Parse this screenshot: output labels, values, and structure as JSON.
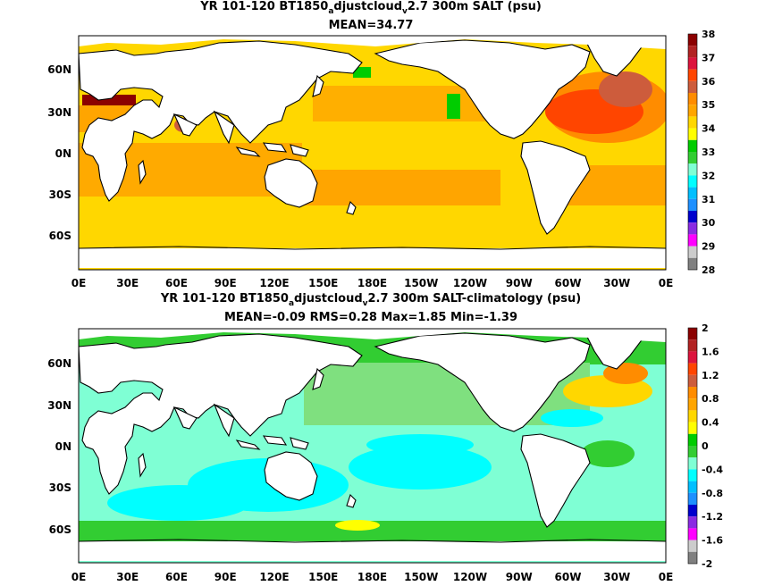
{
  "panels": [
    {
      "title_pre": "YR 101-120 BT1850",
      "title_sub1": "a",
      "title_mid": "djustcloud",
      "title_sub2": "v",
      "title_post": "2.7 300m SALT (psu)",
      "stats": "MEAN=34.77",
      "colorbar_labels": [
        "38",
        "37",
        "36",
        "35",
        "34",
        "33",
        "32",
        "31",
        "30",
        "29",
        "28"
      ],
      "colorbar_colors": [
        "#8b0000",
        "#b22222",
        "#dc143c",
        "#ff4500",
        "#cd5c3c",
        "#ff8c00",
        "#ffa500",
        "#ffd700",
        "#ffff00",
        "#00cc00",
        "#32cd32",
        "#7fffd4",
        "#00ffff",
        "#00bfff",
        "#1e90ff",
        "#0000cd",
        "#8a2be2",
        "#ff00ff",
        "#cccccc",
        "#808080"
      ]
    },
    {
      "title_pre": "YR 101-120 BT1850",
      "title_sub1": "a",
      "title_mid": "djustcloud",
      "title_sub2": "v",
      "title_post": "2.7 300m SALT-climatology (psu)",
      "stats": "MEAN=-0.09   RMS=0.28   Max=1.85   Min=-1.39",
      "colorbar_labels": [
        "2",
        "1.6",
        "1.2",
        "0.8",
        "0.4",
        "0",
        "-0.4",
        "-0.8",
        "-1.2",
        "-1.6",
        "-2"
      ],
      "colorbar_colors": [
        "#8b0000",
        "#b22222",
        "#dc143c",
        "#ff4500",
        "#cd5c3c",
        "#ff8c00",
        "#ffa500",
        "#ffd700",
        "#ffff00",
        "#00cc00",
        "#32cd32",
        "#7fffd4",
        "#00ffff",
        "#00bfff",
        "#1e90ff",
        "#0000cd",
        "#8a2be2",
        "#ff00ff",
        "#cccccc",
        "#808080"
      ]
    }
  ],
  "lat_labels": [
    "60N",
    "30N",
    "0N",
    "30S",
    "60S"
  ],
  "lon_labels": [
    "0E",
    "30E",
    "60E",
    "90E",
    "120E",
    "150E",
    "180E",
    "150W",
    "120W",
    "90W",
    "60W",
    "30W",
    "0E"
  ]
}
